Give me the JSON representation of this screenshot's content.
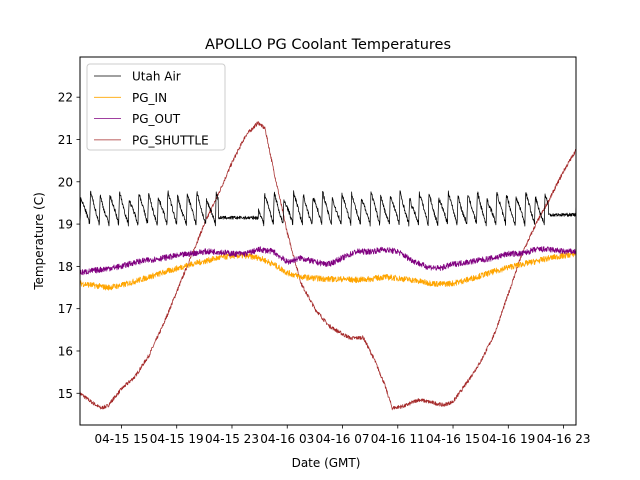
{
  "chart_data": {
    "type": "line",
    "title": "APOLLO PG Coolant Temperatures",
    "xlabel": "Date (GMT)",
    "ylabel": "Temperature (C)",
    "x_unit": "hours since 04-15 12:00 GMT",
    "xlim": [
      0,
      35.9
    ],
    "ylim": [
      14.25,
      22.95
    ],
    "yticks": [
      15,
      16,
      17,
      18,
      19,
      20,
      21,
      22
    ],
    "xticks": [
      {
        "x": 3,
        "label": "04-15 15"
      },
      {
        "x": 7,
        "label": "04-15 19"
      },
      {
        "x": 11,
        "label": "04-15 23"
      },
      {
        "x": 15,
        "label": "04-16 03"
      },
      {
        "x": 19,
        "label": "04-16 07"
      },
      {
        "x": 23,
        "label": "04-16 11"
      },
      {
        "x": 27,
        "label": "04-16 15"
      },
      {
        "x": 31,
        "label": "04-16 19"
      },
      {
        "x": 35,
        "label": "04-16 23"
      }
    ],
    "grid": false,
    "legend": {
      "position": "top-left"
    },
    "series": [
      {
        "name": "Utah Air",
        "color": "#000000",
        "pattern": "sawtooth",
        "cycle_hours": 0.7,
        "cycle_low": 19.0,
        "cycle_high": 19.7,
        "flat_intervals": [
          {
            "from": 10.0,
            "to": 12.9,
            "value": 19.15
          },
          {
            "from": 33.9,
            "to": 35.9,
            "value": 19.22
          }
        ],
        "points": [
          [
            0,
            19.3
          ],
          [
            3,
            19.35
          ],
          [
            6,
            19.35
          ],
          [
            9,
            19.3
          ],
          [
            10,
            19.15
          ],
          [
            12.9,
            19.15
          ],
          [
            15,
            19.3
          ],
          [
            18,
            19.3
          ],
          [
            21,
            19.3
          ],
          [
            24,
            19.35
          ],
          [
            27,
            19.4
          ],
          [
            30,
            19.35
          ],
          [
            33.5,
            19.3
          ],
          [
            33.9,
            19.22
          ],
          [
            35.9,
            19.22
          ]
        ]
      },
      {
        "name": "PG_IN",
        "color": "#ffa500",
        "points": [
          [
            0,
            17.6
          ],
          [
            1,
            17.55
          ],
          [
            2,
            17.5
          ],
          [
            3,
            17.55
          ],
          [
            4,
            17.65
          ],
          [
            5,
            17.75
          ],
          [
            6,
            17.85
          ],
          [
            7,
            17.95
          ],
          [
            8,
            18.05
          ],
          [
            9,
            18.12
          ],
          [
            10,
            18.2
          ],
          [
            11,
            18.25
          ],
          [
            12,
            18.25
          ],
          [
            13,
            18.2
          ],
          [
            14,
            18.05
          ],
          [
            15,
            17.85
          ],
          [
            16,
            17.75
          ],
          [
            17,
            17.72
          ],
          [
            18,
            17.7
          ],
          [
            19,
            17.7
          ],
          [
            20,
            17.68
          ],
          [
            21,
            17.7
          ],
          [
            22,
            17.75
          ],
          [
            23,
            17.72
          ],
          [
            24,
            17.68
          ],
          [
            25,
            17.62
          ],
          [
            26,
            17.58
          ],
          [
            27,
            17.6
          ],
          [
            28,
            17.68
          ],
          [
            29,
            17.78
          ],
          [
            30,
            17.88
          ],
          [
            31,
            17.98
          ],
          [
            32,
            18.05
          ],
          [
            33,
            18.12
          ],
          [
            34,
            18.2
          ],
          [
            35,
            18.25
          ],
          [
            35.9,
            18.3
          ]
        ]
      },
      {
        "name": "PG_OUT",
        "color": "#800080",
        "points": [
          [
            0,
            17.85
          ],
          [
            1,
            17.9
          ],
          [
            2,
            17.95
          ],
          [
            3,
            18.0
          ],
          [
            4,
            18.1
          ],
          [
            5,
            18.15
          ],
          [
            6,
            18.2
          ],
          [
            7,
            18.25
          ],
          [
            8,
            18.3
          ],
          [
            9,
            18.35
          ],
          [
            10,
            18.35
          ],
          [
            11,
            18.3
          ],
          [
            12,
            18.3
          ],
          [
            13,
            18.4
          ],
          [
            14,
            18.35
          ],
          [
            15,
            18.1
          ],
          [
            16,
            18.2
          ],
          [
            17,
            18.1
          ],
          [
            18,
            18.05
          ],
          [
            19,
            18.2
          ],
          [
            20,
            18.35
          ],
          [
            21,
            18.35
          ],
          [
            22,
            18.4
          ],
          [
            23,
            18.35
          ],
          [
            24,
            18.15
          ],
          [
            25,
            18.0
          ],
          [
            26,
            17.95
          ],
          [
            27,
            18.05
          ],
          [
            28,
            18.1
          ],
          [
            29,
            18.15
          ],
          [
            30,
            18.2
          ],
          [
            31,
            18.3
          ],
          [
            32,
            18.3
          ],
          [
            33,
            18.4
          ],
          [
            34,
            18.4
          ],
          [
            35,
            18.35
          ],
          [
            35.9,
            18.35
          ]
        ]
      },
      {
        "name": "PG_SHUTTLE",
        "color": "#a52a2a",
        "points": [
          [
            0,
            15.0
          ],
          [
            0.8,
            14.8
          ],
          [
            1.5,
            14.65
          ],
          [
            2,
            14.7
          ],
          [
            3,
            15.1
          ],
          [
            4,
            15.4
          ],
          [
            5,
            15.9
          ],
          [
            6,
            16.6
          ],
          [
            7,
            17.4
          ],
          [
            8,
            18.2
          ],
          [
            9,
            19.0
          ],
          [
            10,
            19.7
          ],
          [
            11,
            20.45
          ],
          [
            12,
            21.1
          ],
          [
            12.9,
            21.4
          ],
          [
            13.4,
            21.25
          ],
          [
            14,
            20.3
          ],
          [
            15,
            18.8
          ],
          [
            16,
            17.6
          ],
          [
            17,
            17.0
          ],
          [
            18,
            16.6
          ],
          [
            19,
            16.4
          ],
          [
            19.6,
            16.3
          ],
          [
            20.5,
            16.32
          ],
          [
            21.3,
            15.8
          ],
          [
            22,
            15.25
          ],
          [
            22.6,
            14.65
          ],
          [
            23.5,
            14.7
          ],
          [
            24.5,
            14.85
          ],
          [
            25.5,
            14.78
          ],
          [
            26.3,
            14.72
          ],
          [
            27,
            14.8
          ],
          [
            28,
            15.25
          ],
          [
            29,
            15.75
          ],
          [
            30,
            16.4
          ],
          [
            31,
            17.35
          ],
          [
            32,
            18.3
          ],
          [
            33,
            19.0
          ],
          [
            34,
            19.6
          ],
          [
            35,
            20.25
          ],
          [
            35.9,
            20.75
          ]
        ]
      }
    ]
  }
}
